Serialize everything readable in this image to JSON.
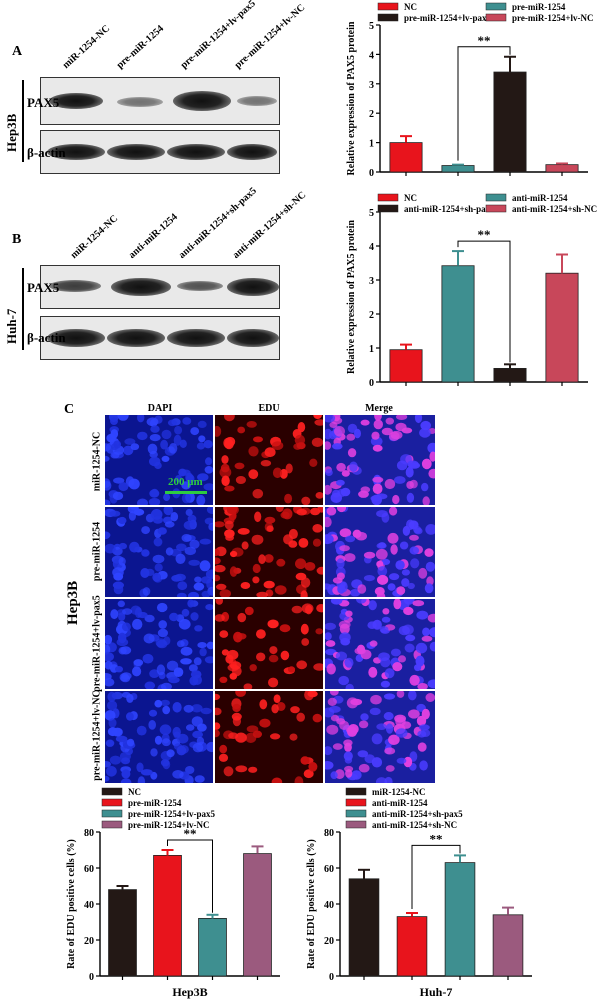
{
  "panels": {
    "a": {
      "letter": "A",
      "cell_line": "Hep3B",
      "lanes": [
        "miR-1254-NC",
        "pre-miR-1254",
        "pre-miR-1254+lv-pax5",
        "pre-miR-1254+lv-NC"
      ],
      "proteins": [
        "PAX5",
        "β-actin"
      ]
    },
    "b": {
      "letter": "B",
      "cell_line": "Huh-7",
      "lanes": [
        "miR-1254-NC",
        "anti-miR-1254",
        "anti-miR-1254+sh-pax5",
        "anti-miR-1254+sh-NC"
      ],
      "proteins": [
        "PAX5",
        "β-actin"
      ]
    },
    "c": {
      "letter": "C",
      "cell_line": "Hep3B",
      "columns": [
        "DAPI",
        "EDU",
        "Merge"
      ],
      "rows": [
        "miR-1254-NC",
        "pre-miR-1254",
        "pre-miR-1254+lv-pax5",
        "pre-miR-1254+lv-NC"
      ],
      "scale_bar": "200 μm"
    }
  },
  "colors": {
    "red": "#e8141c",
    "black": "#231815",
    "teal": "#3e8f90",
    "pink": "#c8475a",
    "mauve": "#9b5a7e",
    "dapi": "#1a2bd6",
    "edu": "#e01010"
  },
  "chart_data": [
    {
      "type": "bar",
      "id": "chart-a",
      "ylabel": "Relative expression of PAX5 protein",
      "ylim": [
        0,
        5
      ],
      "yticks": [
        0,
        1,
        2,
        3,
        4,
        5
      ],
      "legend": [
        "NC",
        "pre-miR-1254",
        "pre-miR-1254+lv-pax5",
        "pre-miR-1254+lv-NC"
      ],
      "colors": [
        "#e8141c",
        "#3e8f90",
        "#231815",
        "#c8475a"
      ],
      "values": [
        1.0,
        0.22,
        3.4,
        0.25
      ],
      "errors": [
        0.22,
        0.03,
        0.52,
        0.04
      ],
      "significance": {
        "from": 1,
        "to": 2,
        "label": "**"
      }
    },
    {
      "type": "bar",
      "id": "chart-b",
      "ylabel": "Relative expression of PAX5 protein",
      "ylim": [
        0,
        5
      ],
      "yticks": [
        0,
        1,
        2,
        3,
        4,
        5
      ],
      "legend": [
        "NC",
        "anti-miR-1254",
        "anti-miR-1254+sh-pax5",
        "anti-miR-1254+sh-NC"
      ],
      "colors": [
        "#e8141c",
        "#3e8f90",
        "#231815",
        "#c8475a"
      ],
      "values": [
        0.95,
        3.42,
        0.4,
        3.2
      ],
      "errors": [
        0.15,
        0.43,
        0.12,
        0.55
      ],
      "significance": {
        "from": 1,
        "to": 2,
        "label": "**"
      }
    },
    {
      "type": "bar",
      "id": "chart-c1",
      "title": "Hep3B",
      "ylabel": "Rate of EDU positive cells (%)",
      "ylim": [
        0,
        80
      ],
      "yticks": [
        0,
        20,
        40,
        60,
        80
      ],
      "legend": [
        "NC",
        "pre-miR-1254",
        "pre-miR-1254+lv-pax5",
        "pre-miR-1254+lv-NC"
      ],
      "colors": [
        "#231815",
        "#e8141c",
        "#3e8f90",
        "#9b5a7e"
      ],
      "values": [
        48,
        67,
        32,
        68
      ],
      "errors": [
        2,
        3,
        2,
        4
      ],
      "significance": {
        "from": 1,
        "to": 2,
        "label": "**"
      }
    },
    {
      "type": "bar",
      "id": "chart-c2",
      "title": "Huh-7",
      "ylabel": "Rate of EDU positive cells (%)",
      "ylim": [
        0,
        80
      ],
      "yticks": [
        0,
        20,
        40,
        60,
        80
      ],
      "legend": [
        "miR-1254-NC",
        "anti-miR-1254",
        "anti-miR-1254+sh-pax5",
        "anti-miR-1254+sh-NC"
      ],
      "colors": [
        "#231815",
        "#e8141c",
        "#3e8f90",
        "#9b5a7e"
      ],
      "values": [
        54,
        33,
        63,
        34
      ],
      "errors": [
        5,
        2,
        4,
        4
      ],
      "significance": {
        "from": 1,
        "to": 2,
        "label": "**"
      }
    }
  ]
}
